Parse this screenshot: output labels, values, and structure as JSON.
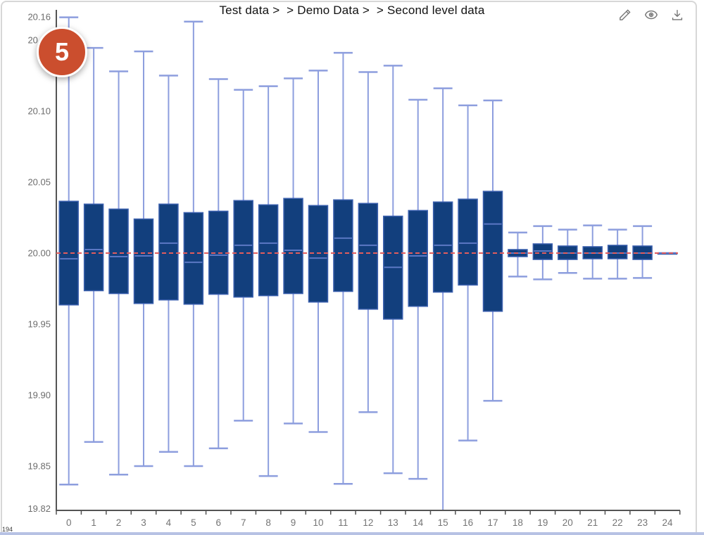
{
  "header": {
    "title": "Test data >  > Demo Data >  > Second level data"
  },
  "badge": {
    "value": "5"
  },
  "toolbar": {
    "icons": [
      {
        "name": "edit-pencil-icon"
      },
      {
        "name": "preview-eye-icon"
      },
      {
        "name": "download-icon"
      }
    ],
    "icon_color": "#757575"
  },
  "footer": {
    "count": "194"
  },
  "colors": {
    "box_fill": "#123f7d",
    "box_border": "#3b60ae",
    "median_line": "#5b78c4",
    "whisker": "#8d9ede",
    "reference_line": "#e25d5d",
    "axis_line": "#545454",
    "axis_label": "#6d6d6d",
    "badge_fill": "#cb4e2e"
  },
  "chart_data": {
    "type": "boxplot",
    "title": "Test data >  > Demo Data >  > Second level data",
    "xlabel": "",
    "ylabel": "",
    "categories": [
      "0",
      "1",
      "2",
      "3",
      "4",
      "5",
      "6",
      "7",
      "8",
      "9",
      "10",
      "11",
      "12",
      "13",
      "14",
      "15",
      "16",
      "17",
      "18",
      "19",
      "20",
      "21",
      "22",
      "23",
      "24"
    ],
    "ylim": [
      19.82,
      20.16
    ],
    "ytick_labels": [
      "20.16",
      "20.15",
      "20.10",
      "20.05",
      "20.00",
      "19.95",
      "19.90",
      "19.85",
      "19.82"
    ],
    "ytick_values": [
      20.16,
      20.15,
      20.1,
      20.05,
      20.0,
      19.95,
      19.9,
      19.85,
      19.82
    ],
    "grid": false,
    "legend": false,
    "reference_line": {
      "value": 20.0,
      "style": "dashed",
      "color": "#e25d5d"
    },
    "series": [
      {
        "name": "boxes",
        "format": [
          "min",
          "q1",
          "median",
          "q3",
          "max"
        ],
        "data": [
          [
            19.837,
            19.9635,
            19.996,
            20.0365,
            20.166
          ],
          [
            19.867,
            19.9735,
            20.0025,
            20.0345,
            20.1445
          ],
          [
            19.844,
            19.9715,
            19.9975,
            20.031,
            20.128
          ],
          [
            19.85,
            19.9645,
            19.998,
            20.024,
            20.142
          ],
          [
            19.86,
            19.967,
            20.007,
            20.0345,
            20.125
          ],
          [
            19.85,
            19.964,
            19.9935,
            20.0285,
            20.163
          ],
          [
            19.8625,
            19.971,
            19.9985,
            20.0295,
            20.1225
          ],
          [
            19.882,
            19.969,
            20.0055,
            20.037,
            20.115
          ],
          [
            19.843,
            19.97,
            20.007,
            20.034,
            20.1175
          ],
          [
            19.88,
            19.9715,
            20.002,
            20.0385,
            20.123
          ],
          [
            19.874,
            19.9655,
            19.9965,
            20.0335,
            20.1285
          ],
          [
            19.8375,
            19.973,
            20.0105,
            20.0375,
            20.141
          ],
          [
            19.888,
            19.9605,
            20.0055,
            20.035,
            20.1275
          ],
          [
            19.845,
            19.9535,
            19.99,
            20.026,
            20.132
          ],
          [
            19.841,
            19.9625,
            19.998,
            20.03,
            20.108
          ],
          [
            19.81,
            19.9725,
            20.0055,
            20.036,
            20.116
          ],
          [
            19.868,
            19.9775,
            20.007,
            20.038,
            20.104
          ],
          [
            19.896,
            19.959,
            20.0205,
            20.0435,
            20.1075
          ],
          [
            19.9835,
            19.9975,
            20.0,
            20.0025,
            20.0145
          ],
          [
            19.9815,
            19.9955,
            20.0015,
            20.0065,
            20.019
          ],
          [
            19.986,
            19.9955,
            20.0,
            20.005,
            20.0165
          ],
          [
            19.982,
            19.996,
            20.0,
            20.0045,
            20.0195
          ],
          [
            19.982,
            19.996,
            20.0,
            20.0055,
            20.0165
          ],
          [
            19.9825,
            19.9955,
            20.0,
            20.005,
            20.019
          ],
          [
            20.0,
            20.0,
            20.0,
            20.0,
            20.0
          ]
        ]
      }
    ]
  }
}
